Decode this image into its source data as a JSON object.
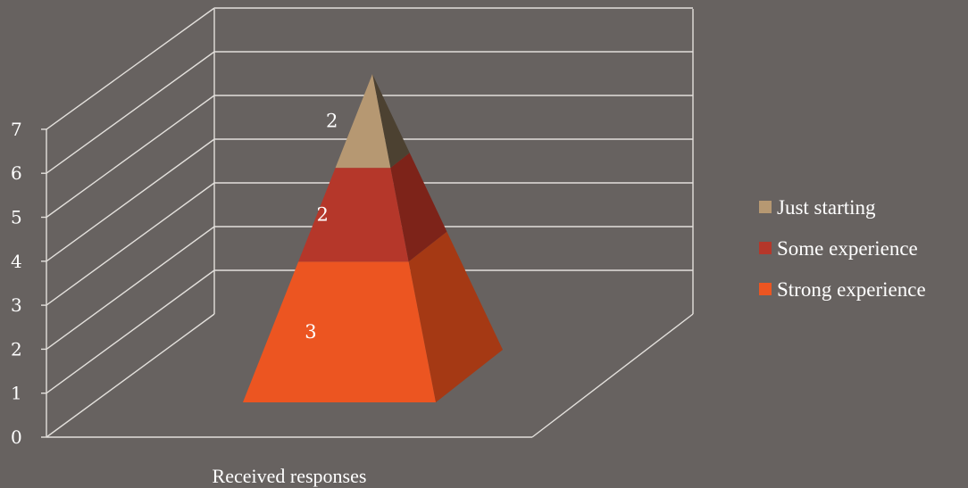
{
  "chart_data": {
    "type": "bar",
    "style": "3d-stacked-pyramid",
    "categories": [
      "Received responses"
    ],
    "series": [
      {
        "name": "Strong experience",
        "values": [
          3
        ],
        "color": "#ec5521",
        "side_color": "#a53914"
      },
      {
        "name": "Some experience",
        "values": [
          2
        ],
        "color": "#b5372a",
        "side_color": "#7d2319"
      },
      {
        "name": "Just starting",
        "values": [
          2
        ],
        "color": "#b69872",
        "side_color": "#4c4131"
      }
    ],
    "y_ticks": [
      "0",
      "1",
      "2",
      "3",
      "4",
      "5",
      "6",
      "7"
    ],
    "ylim": [
      0,
      7
    ],
    "grid": true,
    "legend_position": "right",
    "colors": {
      "background": "#676260",
      "gridline": "#e3e0dc",
      "text": "#ffffff"
    }
  }
}
